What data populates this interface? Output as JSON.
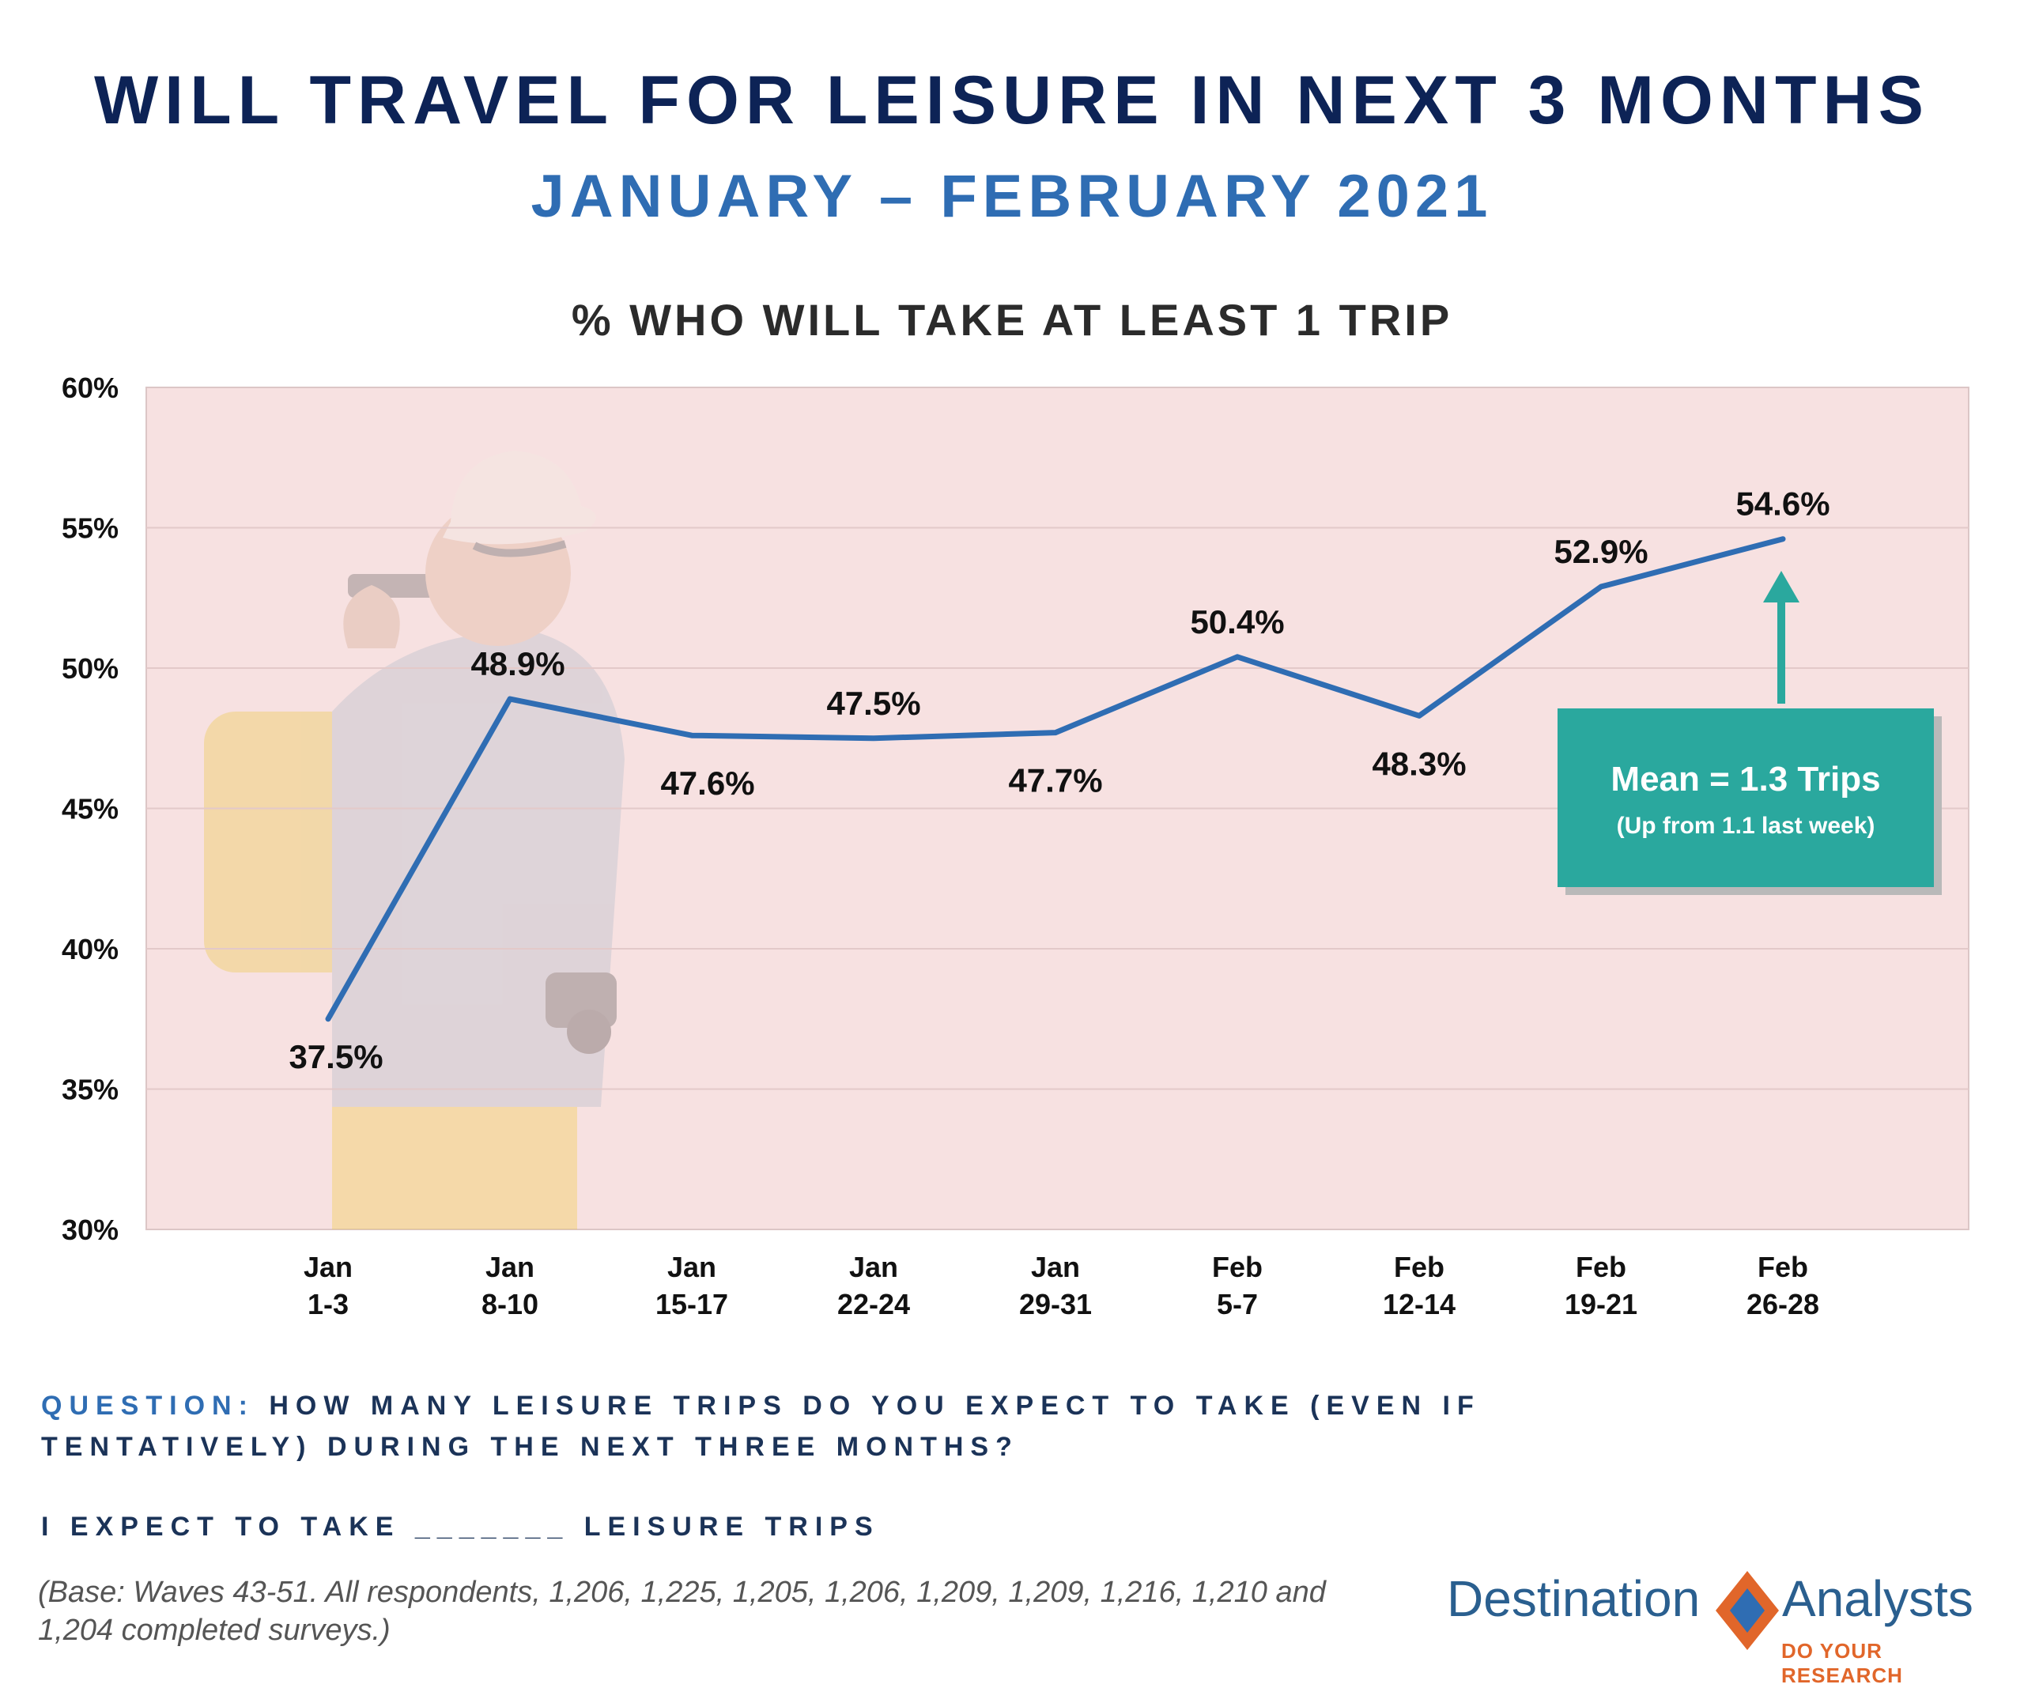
{
  "header": {
    "title": "WILL TRAVEL FOR LEISURE IN NEXT 3 MONTHS",
    "subtitle": "JANUARY – FEBRUARY 2021"
  },
  "chart_data": {
    "type": "line",
    "title": "% WHO WILL TAKE AT LEAST 1 TRIP",
    "categories": [
      [
        "Jan",
        "1-3"
      ],
      [
        "Jan",
        "8-10"
      ],
      [
        "Jan",
        "15-17"
      ],
      [
        "Jan",
        "22-24"
      ],
      [
        "Jan",
        "29-31"
      ],
      [
        "Feb",
        "5-7"
      ],
      [
        "Feb",
        "12-14"
      ],
      [
        "Feb",
        "19-21"
      ],
      [
        "Feb",
        "26-28"
      ]
    ],
    "values": [
      37.5,
      48.9,
      47.6,
      47.5,
      47.7,
      50.4,
      48.3,
      52.9,
      54.6
    ],
    "labels": [
      "37.5%",
      "48.9%",
      "47.6%",
      "47.5%",
      "47.7%",
      "50.4%",
      "48.3%",
      "52.9%",
      "54.6%"
    ],
    "ylim": [
      30,
      60
    ],
    "yticks": [
      "30%",
      "35%",
      "40%",
      "45%",
      "50%",
      "55%",
      "60%"
    ],
    "xlabel": "",
    "ylabel": "",
    "line_color": "#2f6db3",
    "plot_background": "#f7e1e1",
    "annotation": {
      "main": "Mean = 1.3 Trips",
      "sub": "(Up from 1.1 last week)",
      "color": "#2aa89e"
    }
  },
  "footer": {
    "question_label": "QUESTION:",
    "question_text": "HOW MANY LEISURE TRIPS DO YOU EXPECT TO TAKE (EVEN IF TENTATIVELY) DURING THE NEXT THREE MONTHS?",
    "prompt": "I EXPECT TO TAKE _______ LEISURE TRIPS",
    "base": "(Base: Waves 43-51. All respondents, 1,206, 1,225, 1,205, 1,206, 1,209, 1,209, 1,216, 1,210 and 1,204 completed surveys.)"
  },
  "logo": {
    "word1": "Destination",
    "word2": "Analysts",
    "tagline": "DO YOUR RESEARCH"
  }
}
